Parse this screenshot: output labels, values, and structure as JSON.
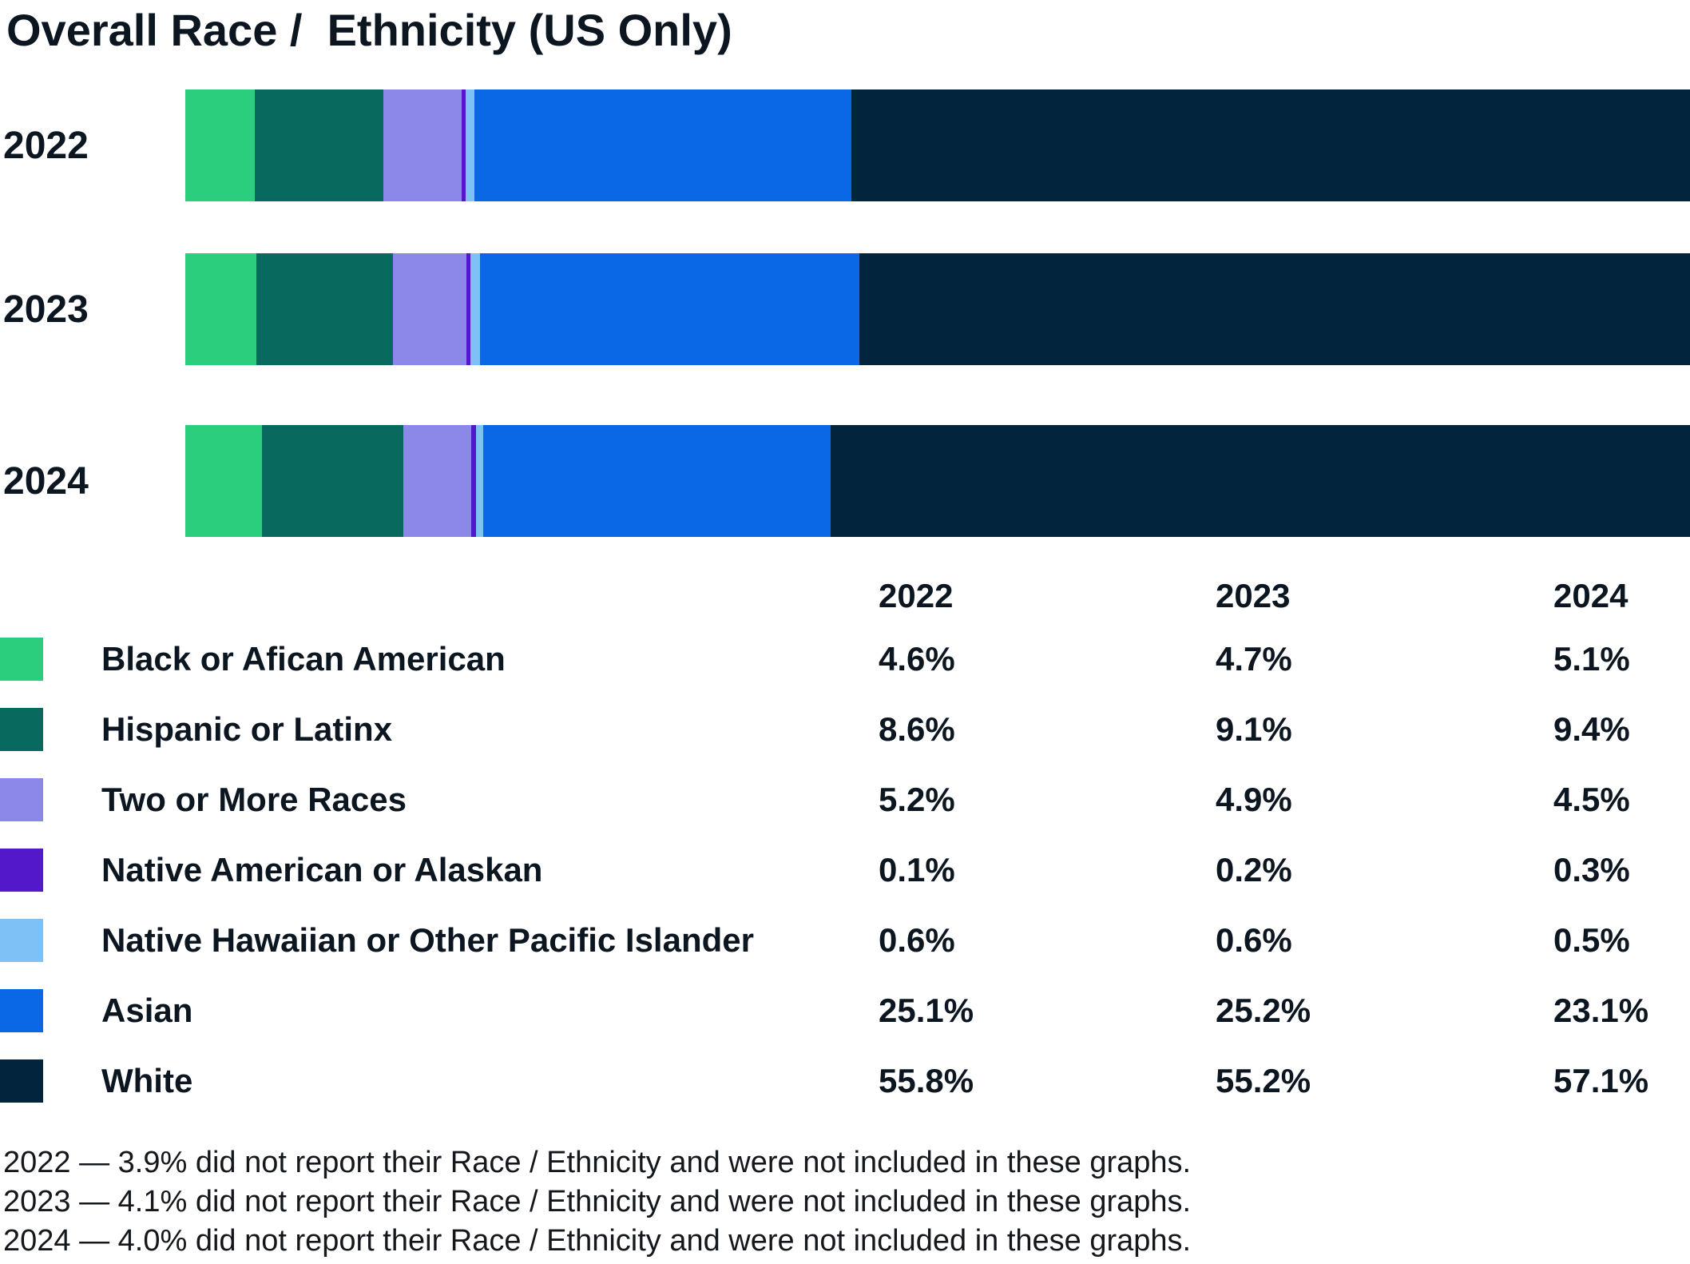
{
  "title": "Overall Race /  Ethnicity (US Only)",
  "chart_data": {
    "type": "bar",
    "stacked": true,
    "orientation": "horizontal",
    "title": "Overall Race /  Ethnicity (US Only)",
    "categories": [
      "2022",
      "2023",
      "2024"
    ],
    "series": [
      {
        "name": "Black or Afican American",
        "color": "#2bce7d",
        "values": [
          4.6,
          4.7,
          5.1
        ]
      },
      {
        "name": "Hispanic or Latinx",
        "color": "#086a5f",
        "values": [
          8.6,
          9.1,
          9.4
        ]
      },
      {
        "name": "Two or More Races",
        "color": "#8c88e9",
        "values": [
          5.2,
          4.9,
          4.5
        ]
      },
      {
        "name": "Native American or Alaskan",
        "color": "#5418cb",
        "values": [
          0.1,
          0.2,
          0.3
        ]
      },
      {
        "name": "Native Hawaiian or Other Pacific Islander",
        "color": "#7dc1f7",
        "values": [
          0.6,
          0.6,
          0.5
        ]
      },
      {
        "name": "Asian",
        "color": "#0a67e6",
        "values": [
          25.1,
          25.2,
          23.1
        ]
      },
      {
        "name": "White",
        "color": "#03243d",
        "values": [
          55.8,
          55.2,
          57.1
        ]
      }
    ],
    "xlim": [
      0,
      100
    ],
    "value_unit": "%",
    "axes": "none",
    "grid": false,
    "legend_position": "bottom-table"
  },
  "table": {
    "columns": [
      "2022",
      "2023",
      "2024"
    ],
    "rows": [
      {
        "label": "Black or Afican American",
        "values": [
          "4.6%",
          "4.7%",
          "5.1%"
        ]
      },
      {
        "label": "Hispanic or Latinx",
        "values": [
          "8.6%",
          "9.1%",
          "9.4%"
        ]
      },
      {
        "label": "Two or More Races",
        "values": [
          "5.2%",
          "4.9%",
          "4.5%"
        ]
      },
      {
        "label": "Native American or Alaskan",
        "values": [
          "0.1%",
          "0.2%",
          "0.3%"
        ]
      },
      {
        "label": "Native Hawaiian or Other Pacific Islander",
        "values": [
          "0.6%",
          "0.6%",
          "0.5%"
        ]
      },
      {
        "label": "Asian",
        "values": [
          "25.1%",
          "25.2%",
          "23.1%"
        ]
      },
      {
        "label": "White",
        "values": [
          "55.8%",
          "55.2%",
          "57.1%"
        ]
      }
    ]
  },
  "footnotes": [
    "2022 — 3.9% did not report their Race / Ethnicity and were not included in these graphs.",
    "2023 — 4.1% did not report their Race / Ethnicity and were not included in these graphs.",
    "2024 — 4.0% did not report their Race / Ethnicity and were not included in these graphs."
  ]
}
